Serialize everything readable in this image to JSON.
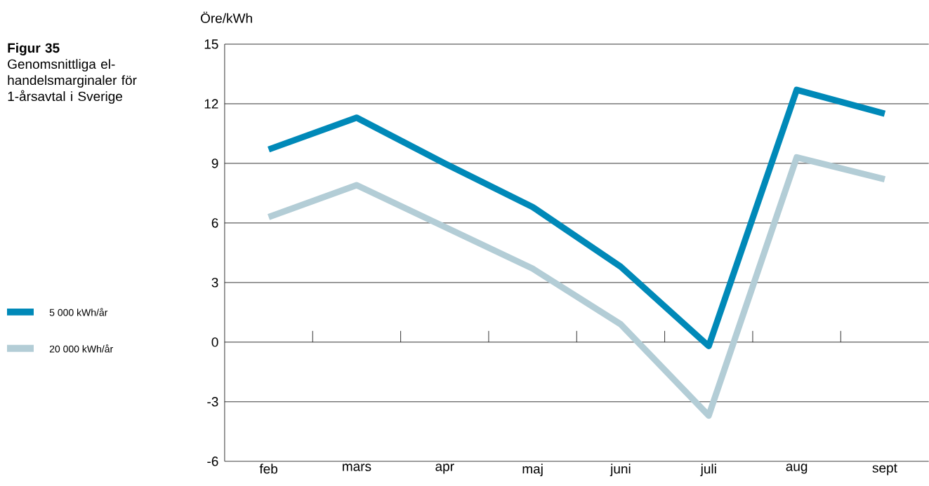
{
  "chart_data": {
    "type": "line",
    "title": "Figur 35",
    "subtitle": "Genomsnittliga el-handelsmarginaler för 1-årsavtal i Sverige",
    "ylabel": "Öre/kWh",
    "categories": [
      "feb",
      "mars",
      "apr",
      "maj",
      "juni",
      "juli",
      "aug",
      "sept"
    ],
    "series": [
      {
        "name": "5 000 kWh/år",
        "color": "#0089b8",
        "values": [
          9.7,
          11.3,
          9.0,
          6.8,
          3.8,
          -0.2,
          12.7,
          11.5
        ]
      },
      {
        "name": "20 000 kWh/år",
        "color": "#b3cdd6",
        "values": [
          6.3,
          7.9,
          5.8,
          3.7,
          0.9,
          -3.7,
          9.3,
          8.2
        ]
      }
    ],
    "ylim": [
      -6,
      15
    ],
    "yticks": [
      -6,
      -3,
      0,
      3,
      6,
      9,
      12,
      15
    ],
    "grid": "y",
    "legend": "left",
    "marker": "none",
    "line_style": "solid"
  }
}
